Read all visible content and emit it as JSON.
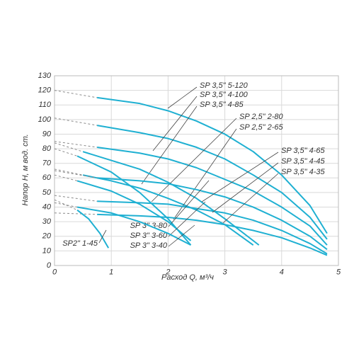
{
  "chart_data": {
    "type": "line",
    "xlabel": "Расход  Q, м³/ч",
    "ylabel": "Напор  H, м вод. ст.",
    "xlim": [
      0,
      5
    ],
    "xticks": [
      0,
      1,
      2,
      3,
      4,
      5
    ],
    "ylim": [
      0,
      130
    ],
    "yticks": [
      0,
      10,
      20,
      30,
      40,
      50,
      60,
      70,
      80,
      90,
      100,
      110,
      120,
      130
    ],
    "grid": true,
    "extension_color": "#8a8a8a",
    "series": [
      {
        "name": "SP 3,5\" 5-120",
        "color": "#1fb0d2",
        "x": [
          0.75,
          1.5,
          2,
          2.5,
          3,
          3.5,
          4,
          4.5,
          4.8
        ],
        "values": [
          115,
          111,
          106,
          99,
          90,
          78,
          62,
          41,
          22
        ],
        "ext_x": [
          0,
          0.75
        ],
        "ext_values": [
          120,
          115
        ]
      },
      {
        "name": "SP 3,5\" 4-100",
        "color": "#1fb0d2",
        "x": [
          0.75,
          1.5,
          2,
          2.5,
          3,
          3.5,
          4,
          4.5,
          4.8
        ],
        "values": [
          96,
          91,
          87,
          81,
          73,
          62,
          50,
          33,
          18
        ],
        "ext_x": [
          0,
          0.75
        ],
        "ext_values": [
          101,
          96
        ]
      },
      {
        "name": "SP 3,5\" 4-85",
        "color": "#1fb0d2",
        "x": [
          0.75,
          1.5,
          2,
          2.5,
          3,
          3.5,
          4,
          4.5,
          4.8
        ],
        "values": [
          81,
          77,
          73,
          67,
          59,
          51,
          40,
          27,
          14
        ],
        "ext_x": [
          0,
          0.75
        ],
        "ext_values": [
          85,
          81
        ]
      },
      {
        "name": "SP 2,5\" 2-80",
        "color": "#1fb0d2",
        "x": [
          0.5,
          1,
          1.5,
          2,
          2.5,
          3,
          3.6
        ],
        "values": [
          78,
          72,
          66,
          57,
          46,
          32,
          14
        ],
        "ext_x": [
          0,
          0.5
        ],
        "ext_values": [
          84,
          78
        ]
      },
      {
        "name": "SP 2,5\" 2-65",
        "color": "#1fb0d2",
        "x": [
          0.5,
          1,
          1.5,
          2,
          2.5,
          3,
          3.5
        ],
        "values": [
          62,
          58,
          53,
          46,
          38,
          28,
          14
        ],
        "ext_x": [
          0,
          0.5
        ],
        "ext_values": [
          66,
          62
        ]
      },
      {
        "name": "SP 3,5\" 4-65",
        "color": "#1fb0d2",
        "x": [
          0.75,
          1.5,
          2,
          2.5,
          3,
          3.5,
          4,
          4.5,
          4.8
        ],
        "values": [
          60,
          58,
          56,
          52,
          47,
          40,
          31,
          20,
          11
        ],
        "ext_x": [
          0,
          0.75
        ],
        "ext_values": [
          65,
          60
        ]
      },
      {
        "name": "SP 3,5\" 4-45",
        "color": "#1fb0d2",
        "x": [
          0.75,
          1.5,
          2,
          2.5,
          3,
          3.5,
          4,
          4.5,
          4.8
        ],
        "values": [
          44,
          43,
          42,
          39,
          36,
          31,
          24,
          15,
          8
        ],
        "ext_x": [
          0,
          0.75
        ],
        "ext_values": [
          48,
          44
        ]
      },
      {
        "name": "SP 3,5\" 4-35",
        "color": "#1fb0d2",
        "x": [
          0.75,
          1.5,
          2,
          2.5,
          3,
          3.5,
          4,
          4.5,
          4.8
        ],
        "values": [
          35,
          34,
          33,
          31,
          28,
          24,
          19,
          12,
          7
        ],
        "ext_x": [
          0,
          0.75
        ],
        "ext_values": [
          36,
          35
        ]
      },
      {
        "name": "SP 3\" 3-80",
        "color": "#1fb0d2",
        "x": [
          0.4,
          1,
          1.5,
          2,
          2.4
        ],
        "values": [
          75,
          64,
          50,
          32,
          14
        ],
        "ext_x": [
          0,
          0.4
        ],
        "ext_values": [
          80,
          75
        ]
      },
      {
        "name": "SP 3\" 3-60",
        "color": "#1fb0d2",
        "x": [
          0.4,
          1,
          1.5,
          2,
          2.4
        ],
        "values": [
          58,
          51,
          42,
          30,
          17
        ],
        "ext_x": [
          0,
          0.4
        ],
        "ext_values": [
          62,
          58
        ]
      },
      {
        "name": "SP 3\" 3-40",
        "color": "#1fb0d2",
        "x": [
          0.4,
          1,
          1.5,
          2,
          2.4
        ],
        "values": [
          40,
          36,
          30,
          22,
          14
        ],
        "ext_x": [
          0,
          0.4
        ],
        "ext_values": [
          43,
          40
        ]
      },
      {
        "name": "SP2\" 1-45",
        "color": "#1fb0d2",
        "x": [
          0.4,
          0.6,
          0.8,
          0.95
        ],
        "values": [
          38,
          32,
          22,
          12
        ],
        "ext_x": [
          0,
          0.4
        ],
        "ext_values": [
          45,
          38
        ]
      }
    ]
  }
}
